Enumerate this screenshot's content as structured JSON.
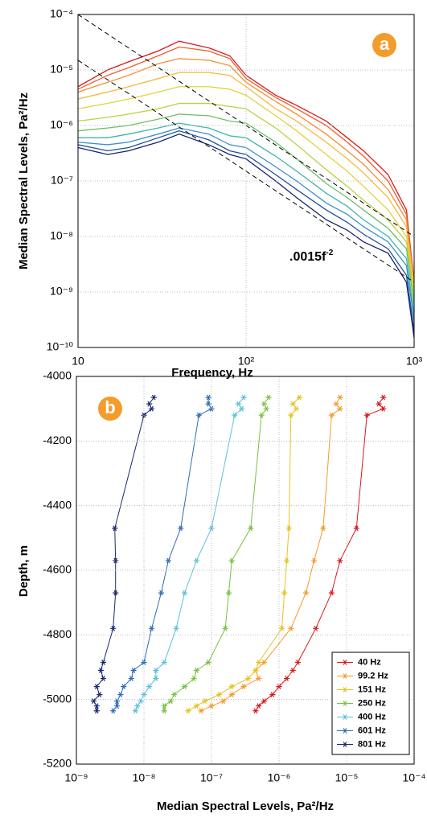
{
  "chart_data": [
    {
      "type": "line",
      "panel_label": "a",
      "x_label": "Frequency, Hz",
      "y_label": "Median Spectral Levels, Pa²/Hz",
      "log_x": true,
      "log_y": true,
      "grid": true,
      "xlim": [
        10,
        1000
      ],
      "ylim": [
        1e-10,
        0.0001
      ],
      "xticks": [
        10,
        {
          "value": 100,
          "label": "10²"
        },
        {
          "value": 1000,
          "label": "10³"
        }
      ],
      "yticks": [
        {
          "value": 1e-10,
          "label": "10⁻¹⁰"
        },
        {
          "value": 1e-09,
          "label": "10⁻⁹"
        },
        {
          "value": 1e-08,
          "label": "10⁻⁸"
        },
        {
          "value": 1e-07,
          "label": "10⁻⁷"
        },
        {
          "value": 1e-06,
          "label": "10⁻⁶"
        },
        {
          "value": 1e-05,
          "label": "10⁻⁵"
        },
        {
          "value": 0.0001,
          "label": "10⁻⁴"
        }
      ],
      "annotation": {
        "text": ".0015f",
        "superscript": "-2"
      },
      "x": [
        10,
        15,
        20,
        30,
        40,
        60,
        80,
        100,
        150,
        200,
        300,
        400,
        500,
        700,
        900,
        1000
      ],
      "series": [
        {
          "color": "#d7191c",
          "values": [
            5e-06,
            1e-05,
            1.4e-05,
            2.2e-05,
            3.3e-05,
            2.5e-05,
            1.8e-05,
            8e-06,
            3.5e-06,
            2.3e-06,
            1.2e-06,
            6e-07,
            3.5e-07,
            1.3e-07,
            3e-08,
            1.5e-09
          ]
        },
        {
          "color": "#f05a28",
          "values": [
            4.5e-06,
            8e-06,
            1.1e-05,
            1.8e-05,
            2.6e-05,
            2.2e-05,
            1.6e-05,
            7e-06,
            3.2e-06,
            2e-06,
            1e-06,
            5e-07,
            2.8e-07,
            1e-07,
            2.5e-08,
            1.5e-09
          ]
        },
        {
          "color": "#f58c30",
          "values": [
            4e-06,
            6e-06,
            8e-06,
            1.3e-05,
            1.6e-05,
            1.5e-05,
            1.2e-05,
            6e-06,
            2.7e-06,
            1.6e-06,
            7e-07,
            3.5e-07,
            2e-07,
            7e-08,
            2e-08,
            1.3e-09
          ]
        },
        {
          "color": "#f6b93b",
          "values": [
            3e-06,
            4e-06,
            5e-06,
            7e-06,
            9e-06,
            9e-06,
            8e-06,
            5e-06,
            2e-06,
            1.2e-06,
            5e-07,
            2.5e-07,
            1.4e-07,
            5e-08,
            1.5e-08,
            1.2e-09
          ]
        },
        {
          "color": "#e3d23a",
          "values": [
            2e-06,
            2.5e-06,
            3e-06,
            4e-06,
            5e-06,
            5e-06,
            4.5e-06,
            3.5e-06,
            1.5e-06,
            8e-07,
            3e-07,
            1.5e-07,
            8e-08,
            3e-08,
            1e-08,
            1e-09
          ]
        },
        {
          "color": "#b7d33c",
          "values": [
            1.2e-06,
            1.4e-06,
            1.6e-06,
            2e-06,
            2.5e-06,
            2.5e-06,
            2.2e-06,
            2e-06,
            9e-07,
            4.5e-07,
            1.6e-07,
            8e-08,
            4.5e-08,
            2e-08,
            8e-09,
            8e-10
          ]
        },
        {
          "color": "#6fc065",
          "values": [
            8e-07,
            9e-07,
            1e-06,
            1.3e-06,
            1.6e-06,
            1.5e-06,
            1.2e-06,
            1.1e-06,
            5e-07,
            2.5e-07,
            9e-08,
            5e-08,
            3e-08,
            1.4e-08,
            6e-09,
            6e-10
          ]
        },
        {
          "color": "#3fb5b0",
          "values": [
            6e-07,
            6e-07,
            7e-07,
            9e-07,
            1.1e-06,
            9e-07,
            6.5e-07,
            6e-07,
            2.8e-07,
            1.5e-07,
            6e-08,
            3.5e-08,
            2e-08,
            1e-08,
            4e-09,
            4e-10
          ]
        },
        {
          "color": "#3a8fd0",
          "values": [
            5e-07,
            4.5e-07,
            5e-07,
            7e-07,
            9e-07,
            7e-07,
            4.5e-07,
            4e-07,
            1.8e-07,
            1e-07,
            4e-08,
            2.5e-08,
            1.5e-08,
            8e-09,
            3e-09,
            3e-10
          ]
        },
        {
          "color": "#1f4fa0",
          "values": [
            4.5e-07,
            3.5e-07,
            4e-07,
            6e-07,
            8e-07,
            5.5e-07,
            3.5e-07,
            3e-07,
            1.3e-07,
            7e-08,
            3e-08,
            1.8e-08,
            1.1e-08,
            6e-09,
            2e-09,
            2e-10
          ]
        },
        {
          "color": "#17246b",
          "values": [
            4e-07,
            3e-07,
            3.5e-07,
            5e-07,
            7e-07,
            4.5e-07,
            3e-07,
            2.5e-07,
            1e-07,
            5e-08,
            2e-08,
            1.3e-08,
            8e-09,
            5e-09,
            1.5e-09,
            1.5e-10
          ]
        }
      ],
      "reference_lines": [
        {
          "color": "#000000",
          "x": [
            10,
            1000
          ],
          "values": [
            0.0001,
            1e-08
          ]
        },
        {
          "color": "#000000",
          "x": [
            10,
            1000
          ],
          "values": [
            1.5e-05,
            1.5e-09
          ]
        }
      ]
    },
    {
      "type": "profile",
      "panel_label": "b",
      "x_label": "Median Spectral Levels, Pa²/Hz",
      "y_label": "Depth, m",
      "log_x": true,
      "grid": true,
      "legend": "lower right",
      "xlim": [
        1e-09,
        0.0001
      ],
      "ylim": [
        -5200,
        -4000
      ],
      "xticks": [
        {
          "value": 1e-09,
          "label": "10⁻⁹"
        },
        {
          "value": 1e-08,
          "label": "10⁻⁸"
        },
        {
          "value": 1e-07,
          "label": "10⁻⁷"
        },
        {
          "value": 1e-06,
          "label": "10⁻⁶"
        },
        {
          "value": 1e-05,
          "label": "10⁻⁵"
        },
        {
          "value": 0.0001,
          "label": "10⁻⁴"
        }
      ],
      "yticks": [
        -5200,
        -5000,
        -4800,
        -4600,
        -4400,
        -4200,
        -4000
      ],
      "depths": [
        -4065,
        -4085,
        -4100,
        -4120,
        -4470,
        -4570,
        -4670,
        -4780,
        -4885,
        -4910,
        -4935,
        -4960,
        -4985,
        -5005,
        -5020,
        -5035
      ],
      "series": [
        {
          "name": "40 Hz",
          "color": "#d7191c",
          "values": [
            3.5e-05,
            3e-05,
            3.5e-05,
            2e-05,
            1.4e-05,
            8e-06,
            6e-06,
            3.5e-06,
            1.9e-06,
            1.6e-06,
            1.3e-06,
            1e-06,
            8e-07,
            6e-07,
            5e-07,
            4.5e-07
          ]
        },
        {
          "name": "99.2 Hz",
          "color": "#f39c2b",
          "values": [
            8e-06,
            7e-06,
            8e-06,
            6e-06,
            4.5e-06,
            3.3e-06,
            2.5e-06,
            1.5e-06,
            6e-07,
            4.5e-07,
            5e-07,
            3e-07,
            2e-07,
            1.5e-07,
            1e-07,
            7e-08
          ]
        },
        {
          "name": "151 Hz",
          "color": "#e8c21e",
          "values": [
            2e-06,
            1.6e-06,
            1.8e-06,
            1.5e-06,
            1.4e-06,
            1.3e-06,
            1.2e-06,
            1.1e-06,
            5e-07,
            4.5e-07,
            3.5e-07,
            2e-07,
            1.3e-07,
            8e-08,
            6e-08,
            4.5e-08
          ]
        },
        {
          "name": "250 Hz",
          "color": "#7ac143",
          "values": [
            7e-07,
            6e-07,
            6.5e-07,
            5.5e-07,
            3.8e-07,
            2e-07,
            1.8e-07,
            1.6e-07,
            9e-08,
            6e-08,
            5.5e-08,
            4e-08,
            2.8e-08,
            2.5e-08,
            2e-08,
            2e-08
          ]
        },
        {
          "name": "400 Hz",
          "color": "#5bc0de",
          "values": [
            3e-07,
            2.5e-07,
            2.8e-07,
            2.2e-07,
            1e-07,
            6e-08,
            4e-08,
            3e-08,
            2e-08,
            1.5e-08,
            1.5e-08,
            1.2e-08,
            1e-08,
            9e-09,
            8e-09,
            7.5e-09
          ]
        },
        {
          "name": "601 Hz",
          "color": "#2f6db5",
          "values": [
            9e-08,
            9e-08,
            1e-07,
            6.5e-08,
            3.5e-08,
            2.3e-08,
            1.8e-08,
            1.3e-08,
            1e-08,
            7e-09,
            6.5e-09,
            5e-09,
            4.5e-09,
            4e-09,
            4e-09,
            3.5e-09
          ]
        },
        {
          "name": "801 Hz",
          "color": "#1b2a70",
          "values": [
            1.4e-08,
            1.2e-08,
            1.3e-08,
            1e-08,
            3.7e-09,
            3.8e-09,
            3.8e-09,
            3.5e-09,
            2.5e-09,
            2.3e-09,
            2.5e-09,
            2e-09,
            2.2e-09,
            1.8e-09,
            2e-09,
            2e-09
          ]
        }
      ]
    }
  ]
}
